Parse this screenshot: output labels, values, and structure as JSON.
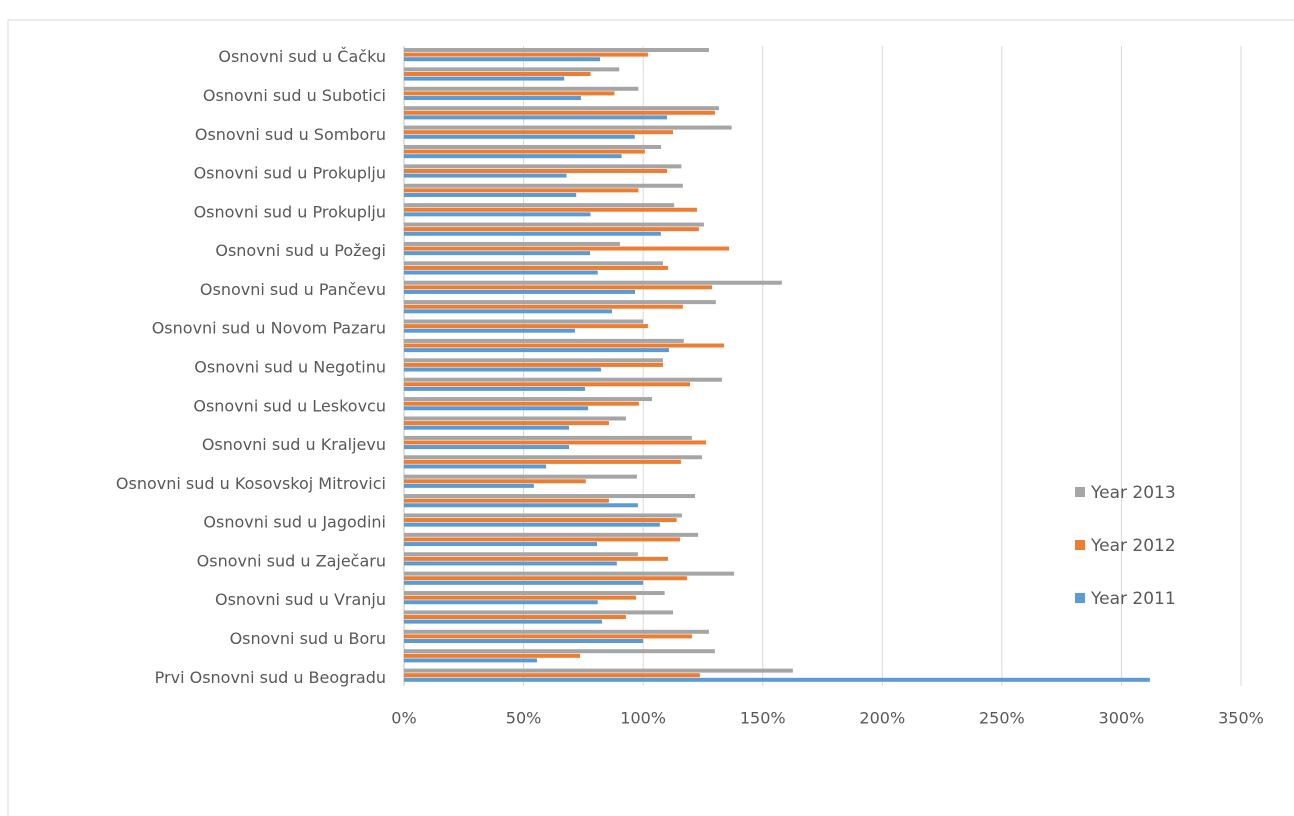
{
  "chart_data": {
    "type": "bar",
    "orientation": "horizontal",
    "categories": [
      "Osnovni sud u Čačku",
      null,
      "Osnovni sud u Subotici",
      null,
      "Osnovni sud u Somboru",
      null,
      "Osnovni sud u Prokuplju",
      null,
      "Osnovni sud u Prokuplju",
      null,
      "Osnovni sud u Požegi",
      null,
      "Osnovni sud u Pančevu",
      null,
      "Osnovni sud u Novom Pazaru",
      null,
      "Osnovni sud u Negotinu",
      null,
      "Osnovni sud u Leskovcu",
      null,
      "Osnovni sud u Kraljevu",
      null,
      "Osnovni sud u Kosovskoj Mitrovici",
      null,
      "Osnovni sud u Jagodini",
      null,
      "Osnovni sud u Zaječaru",
      null,
      "Osnovni sud u Vranju",
      null,
      "Osnovni sud u Boru",
      null,
      "Prvi Osnovni sud u Beogradu"
    ],
    "series": [
      {
        "name": "Year 2013",
        "color": "#a5a5a5",
        "values": [
          127.5,
          90,
          98,
          131.7,
          137,
          107.5,
          116,
          116.6,
          113,
          125.4,
          90.3,
          108.3,
          158,
          130.4,
          100,
          117,
          108.3,
          133,
          103.7,
          92.8,
          120.4,
          124.6,
          97.4,
          121.7,
          116.2,
          123,
          97.8,
          138,
          109,
          112.5,
          127.5,
          130,
          162.6
        ]
      },
      {
        "name": "Year 2012",
        "color": "#ed7d31",
        "values": [
          102,
          78,
          88,
          130,
          112.5,
          100.7,
          110,
          98,
          122.5,
          123.3,
          135.9,
          110.4,
          128.8,
          116.6,
          102,
          133.8,
          108.3,
          119.6,
          98.2,
          85.7,
          126.3,
          115.8,
          76,
          85.7,
          114,
          115.4,
          110.4,
          118.3,
          97,
          92.8,
          120.4,
          73.6,
          123.7
        ]
      },
      {
        "name": "Year 2011",
        "color": "#5b9bd5",
        "values": [
          82,
          67,
          74,
          110,
          96.5,
          91,
          68,
          72,
          78,
          107.4,
          77.8,
          81,
          96.6,
          87,
          71.5,
          110.8,
          82.4,
          75.7,
          77,
          69,
          69,
          59.4,
          54.3,
          97.8,
          107,
          80.7,
          89,
          100,
          81,
          82.8,
          100,
          55.6,
          311.9
        ]
      }
    ],
    "xlim": [
      0,
      350
    ],
    "xticks": [
      {
        "value": 0,
        "label": "0%"
      },
      {
        "value": 50,
        "label": "50%"
      },
      {
        "value": 100,
        "label": "100%"
      },
      {
        "value": 150,
        "label": "150%"
      },
      {
        "value": 200,
        "label": "200%"
      },
      {
        "value": 250,
        "label": "250%"
      },
      {
        "value": 300,
        "label": "300%"
      },
      {
        "value": 350,
        "label": "350%"
      }
    ],
    "grid": true,
    "legend": "right"
  }
}
